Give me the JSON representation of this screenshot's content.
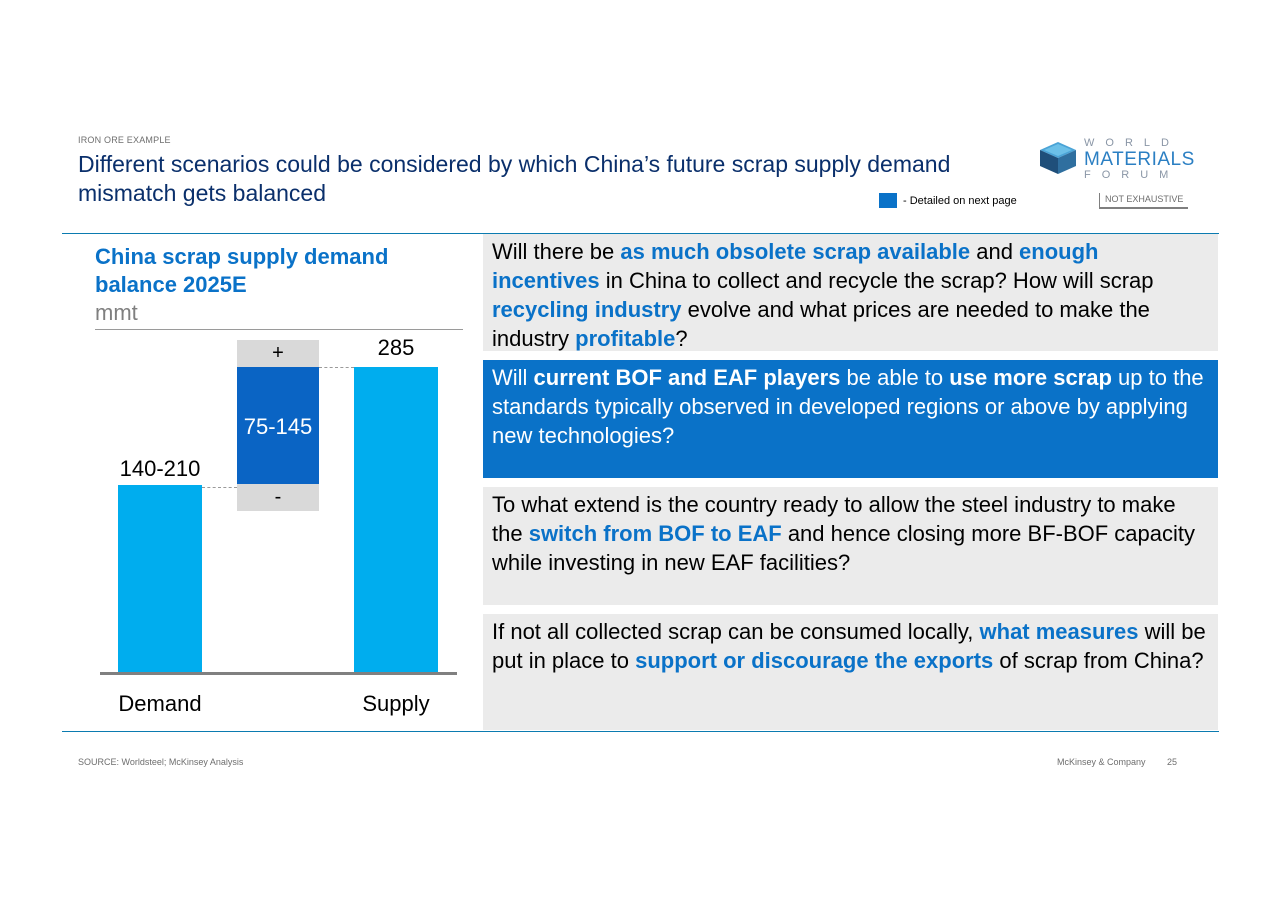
{
  "header": {
    "tracker": "IRON ORE EXAMPLE",
    "title": "Different scenarios could be considered by which China’s future scrap supply demand mismatch gets balanced",
    "legend_label": "- Detailed on next page",
    "not_exhaustive": "NOT EXHAUSTIVE"
  },
  "logo": {
    "line1": "WORLD",
    "line2": "MATERIALS",
    "line3": "FORUM"
  },
  "chart": {
    "title": "China scrap supply demand balance 2025E",
    "unit": "mmt"
  },
  "chart_data": {
    "type": "bar",
    "categories": [
      "Demand",
      "",
      "Supply"
    ],
    "values": [
      "140-210",
      "75-145",
      "285"
    ],
    "demand_label": "140-210",
    "gap_label": "75-145",
    "supply_label": "285",
    "plus_label": "+",
    "minus_label": "-",
    "categories_text": {
      "demand": "Demand",
      "supply": "Supply"
    },
    "colors": {
      "bar": "#00adee",
      "gap": "#0a64c4"
    }
  },
  "questions": [
    {
      "style": "grey",
      "parts": [
        {
          "t": "Will there be "
        },
        {
          "t": "as much obsolete scrap available",
          "b": true
        },
        {
          "t": " and "
        },
        {
          "t": "enough incentives",
          "b": true
        },
        {
          "t": " in China to collect and recycle the scrap? How will scrap "
        },
        {
          "t": "recycling industry",
          "b": true
        },
        {
          "t": " evolve and what prices are needed to make the industry "
        },
        {
          "t": "profitable",
          "b": true
        },
        {
          "t": "?"
        }
      ]
    },
    {
      "style": "blue",
      "parts": [
        {
          "t": "Will "
        },
        {
          "t": "current BOF and EAF players",
          "b": true
        },
        {
          "t": " be able to "
        },
        {
          "t": "use more scrap",
          "b": true
        },
        {
          "t": " up to the standards typically observed in developed regions or above by applying new technologies?"
        }
      ]
    },
    {
      "style": "grey",
      "parts": [
        {
          "t": "To what extend is the country ready to allow the steel industry to make the "
        },
        {
          "t": "switch from BOF to EAF",
          "b": true
        },
        {
          "t": " and hence closing more BF-BOF capacity while investing in new EAF facilities?"
        }
      ]
    },
    {
      "style": "grey",
      "parts": [
        {
          "t": "If not all collected scrap can be consumed locally, "
        },
        {
          "t": "what measures",
          "b": true
        },
        {
          "t": " will be put in place to "
        },
        {
          "t": "support or discourage the exports",
          "b": true
        },
        {
          "t": " of scrap from China?"
        }
      ]
    }
  ],
  "footer": {
    "source": "SOURCE: Worldsteel; McKinsey Analysis",
    "company": "McKinsey & Company",
    "page": "25"
  }
}
